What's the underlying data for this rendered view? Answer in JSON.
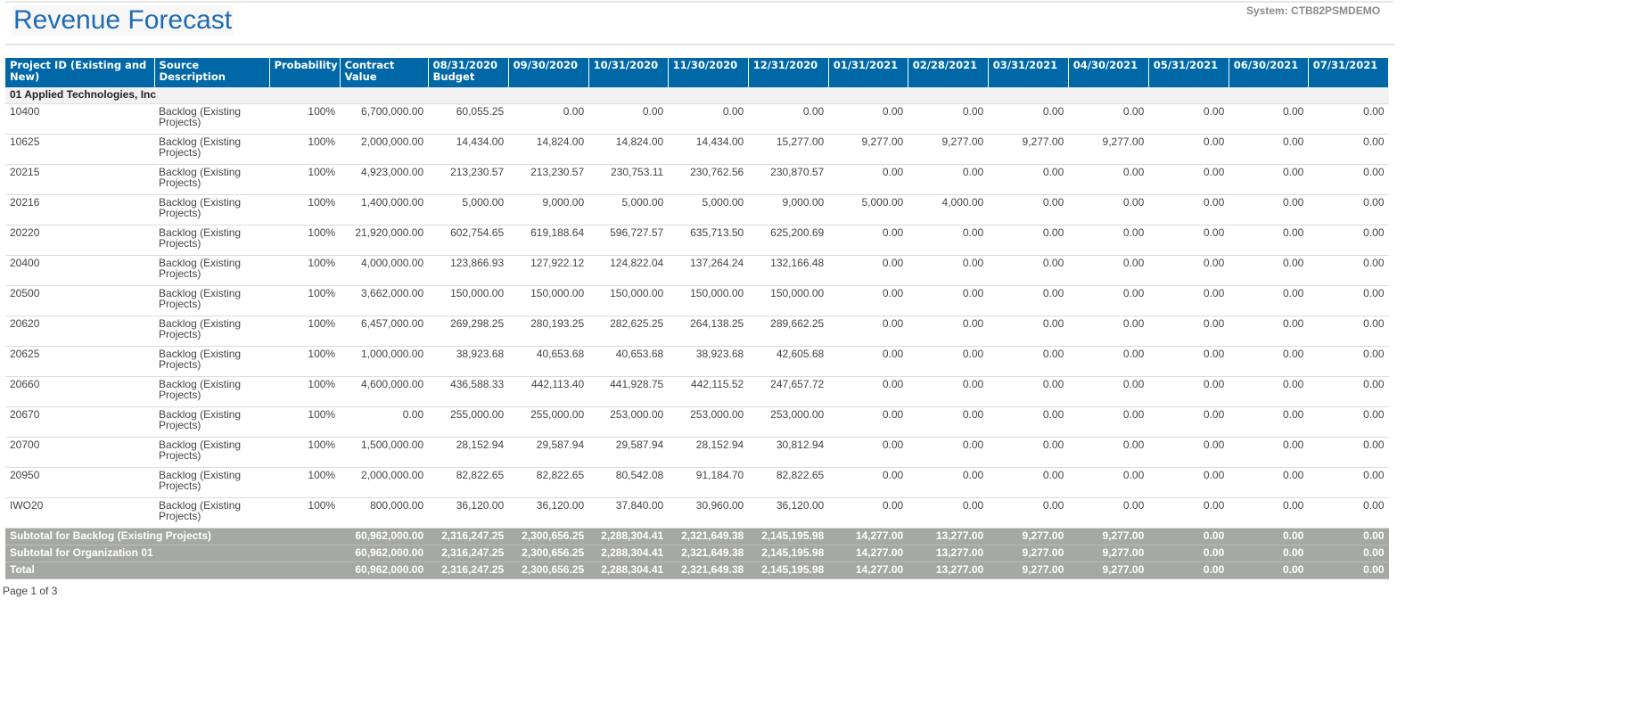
{
  "header": {
    "title": "Revenue Forecast",
    "system": "System:  CTB82PSMDEMO"
  },
  "columns": [
    "Project ID (Existing and New)",
    "Source Description",
    "Probability",
    "Contract Value",
    "08/31/2020 Budget",
    "09/30/2020",
    "10/31/2020",
    "11/30/2020",
    "12/31/2020",
    "01/31/2021",
    "02/28/2021",
    "03/31/2021",
    "04/30/2021",
    "05/31/2021",
    "06/30/2021",
    "07/31/2021"
  ],
  "group": "01 Applied Technologies, Inc",
  "rows": [
    [
      "10400",
      "Backlog (Existing Projects)",
      "100%",
      "6,700,000.00",
      "60,055.25",
      "0.00",
      "0.00",
      "0.00",
      "0.00",
      "0.00",
      "0.00",
      "0.00",
      "0.00",
      "0.00",
      "0.00",
      "0.00"
    ],
    [
      "10625",
      "Backlog (Existing Projects)",
      "100%",
      "2,000,000.00",
      "14,434.00",
      "14,824.00",
      "14,824.00",
      "14,434.00",
      "15,277.00",
      "9,277.00",
      "9,277.00",
      "9,277.00",
      "9,277.00",
      "0.00",
      "0.00",
      "0.00"
    ],
    [
      "20215",
      "Backlog (Existing Projects)",
      "100%",
      "4,923,000.00",
      "213,230.57",
      "213,230.57",
      "230,753.11",
      "230,762.56",
      "230,870.57",
      "0.00",
      "0.00",
      "0.00",
      "0.00",
      "0.00",
      "0.00",
      "0.00"
    ],
    [
      "20216",
      "Backlog (Existing Projects)",
      "100%",
      "1,400,000.00",
      "5,000.00",
      "9,000.00",
      "5,000.00",
      "5,000.00",
      "9,000.00",
      "5,000.00",
      "4,000.00",
      "0.00",
      "0.00",
      "0.00",
      "0.00",
      "0.00"
    ],
    [
      "20220",
      "Backlog (Existing Projects)",
      "100%",
      "21,920,000.00",
      "602,754.65",
      "619,188.64",
      "596,727.57",
      "635,713.50",
      "625,200.69",
      "0.00",
      "0.00",
      "0.00",
      "0.00",
      "0.00",
      "0.00",
      "0.00"
    ],
    [
      "20400",
      "Backlog (Existing Projects)",
      "100%",
      "4,000,000.00",
      "123,866.93",
      "127,922.12",
      "124,822.04",
      "137,264.24",
      "132,166.48",
      "0.00",
      "0.00",
      "0.00",
      "0.00",
      "0.00",
      "0.00",
      "0.00"
    ],
    [
      "20500",
      "Backlog (Existing Projects)",
      "100%",
      "3,662,000.00",
      "150,000.00",
      "150,000.00",
      "150,000.00",
      "150,000.00",
      "150,000.00",
      "0.00",
      "0.00",
      "0.00",
      "0.00",
      "0.00",
      "0.00",
      "0.00"
    ],
    [
      "20620",
      "Backlog (Existing Projects)",
      "100%",
      "6,457,000.00",
      "269,298.25",
      "280,193.25",
      "282,625.25",
      "264,138.25",
      "289,662.25",
      "0.00",
      "0.00",
      "0.00",
      "0.00",
      "0.00",
      "0.00",
      "0.00"
    ],
    [
      "20625",
      "Backlog (Existing Projects)",
      "100%",
      "1,000,000.00",
      "38,923.68",
      "40,653.68",
      "40,653.68",
      "38,923.68",
      "42,605.68",
      "0.00",
      "0.00",
      "0.00",
      "0.00",
      "0.00",
      "0.00",
      "0.00"
    ],
    [
      "20660",
      "Backlog (Existing Projects)",
      "100%",
      "4,600,000.00",
      "436,588.33",
      "442,113.40",
      "441,928.75",
      "442,115.52",
      "247,657.72",
      "0.00",
      "0.00",
      "0.00",
      "0.00",
      "0.00",
      "0.00",
      "0.00"
    ],
    [
      "20670",
      "Backlog (Existing Projects)",
      "100%",
      "0.00",
      "255,000.00",
      "255,000.00",
      "253,000.00",
      "253,000.00",
      "253,000.00",
      "0.00",
      "0.00",
      "0.00",
      "0.00",
      "0.00",
      "0.00",
      "0.00"
    ],
    [
      "20700",
      "Backlog (Existing Projects)",
      "100%",
      "1,500,000.00",
      "28,152.94",
      "29,587.94",
      "29,587.94",
      "28,152.94",
      "30,812.94",
      "0.00",
      "0.00",
      "0.00",
      "0.00",
      "0.00",
      "0.00",
      "0.00"
    ],
    [
      "20950",
      "Backlog (Existing Projects)",
      "100%",
      "2,000,000.00",
      "82,822.65",
      "82,822.65",
      "80,542.08",
      "91,184.70",
      "82,822.65",
      "0.00",
      "0.00",
      "0.00",
      "0.00",
      "0.00",
      "0.00",
      "0.00"
    ],
    [
      "IWO20",
      "Backlog (Existing Projects)",
      "100%",
      "800,000.00",
      "36,120.00",
      "36,120.00",
      "37,840.00",
      "30,960.00",
      "36,120.00",
      "0.00",
      "0.00",
      "0.00",
      "0.00",
      "0.00",
      "0.00",
      "0.00"
    ]
  ],
  "subtotals": [
    {
      "label": "Subtotal for Backlog (Existing Projects)",
      "values": [
        "60,962,000.00",
        "2,316,247.25",
        "2,300,656.25",
        "2,288,304.41",
        "2,321,649.38",
        "2,145,195.98",
        "14,277.00",
        "13,277.00",
        "9,277.00",
        "9,277.00",
        "0.00",
        "0.00",
        "0.00"
      ]
    },
    {
      "label": "Subtotal for Organization 01",
      "values": [
        "60,962,000.00",
        "2,316,247.25",
        "2,300,656.25",
        "2,288,304.41",
        "2,321,649.38",
        "2,145,195.98",
        "14,277.00",
        "13,277.00",
        "9,277.00",
        "9,277.00",
        "0.00",
        "0.00",
        "0.00"
      ]
    },
    {
      "label": "Total",
      "values": [
        "60,962,000.00",
        "2,316,247.25",
        "2,300,656.25",
        "2,288,304.41",
        "2,321,649.38",
        "2,145,195.98",
        "14,277.00",
        "13,277.00",
        "9,277.00",
        "9,277.00",
        "0.00",
        "0.00",
        "0.00"
      ]
    }
  ],
  "footer": {
    "page": "Page 1 of 3"
  }
}
